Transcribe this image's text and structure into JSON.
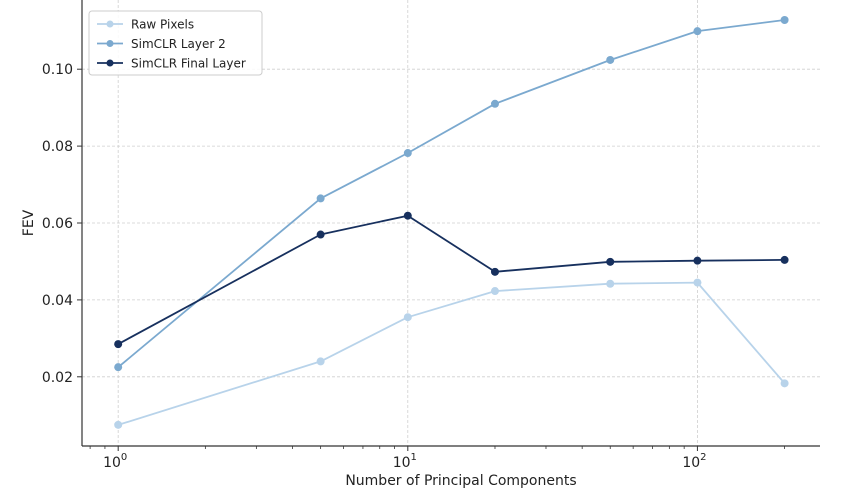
{
  "chart_data": {
    "type": "line",
    "title": "",
    "xlabel": "Number of Principal Components",
    "ylabel": "FEV",
    "xscale": "log",
    "xlim": [
      0.75,
      265
    ],
    "ylim": [
      0.002,
      0.118
    ],
    "grid": true,
    "legend_position": "top-left",
    "x": [
      1,
      5,
      10,
      20,
      50,
      100,
      200
    ],
    "x_ticks": [
      {
        "value": 1,
        "base": "10",
        "exp": "0"
      },
      {
        "value": 10,
        "base": "10",
        "exp": "1"
      },
      {
        "value": 100,
        "base": "10",
        "exp": "2"
      }
    ],
    "y_ticks": [
      {
        "value": 0.02,
        "label": "0.02"
      },
      {
        "value": 0.04,
        "label": "0.04"
      },
      {
        "value": 0.06,
        "label": "0.06"
      },
      {
        "value": 0.08,
        "label": "0.08"
      },
      {
        "value": 0.1,
        "label": "0.10"
      }
    ],
    "series": [
      {
        "name": "Raw Pixels",
        "color": "#b8d3ea",
        "values": [
          0.0075,
          0.024,
          0.0355,
          0.0423,
          0.0442,
          0.0445,
          0.0183
        ]
      },
      {
        "name": "SimCLR Layer 2",
        "color": "#7ba9cf",
        "values": [
          0.0225,
          0.0664,
          0.0782,
          0.091,
          0.1024,
          0.1099,
          0.1128
        ]
      },
      {
        "name": "SimCLR Final Layer",
        "color": "#17305e",
        "values": [
          0.0285,
          0.057,
          0.0619,
          0.0473,
          0.0499,
          0.0502,
          0.0504
        ]
      }
    ]
  }
}
